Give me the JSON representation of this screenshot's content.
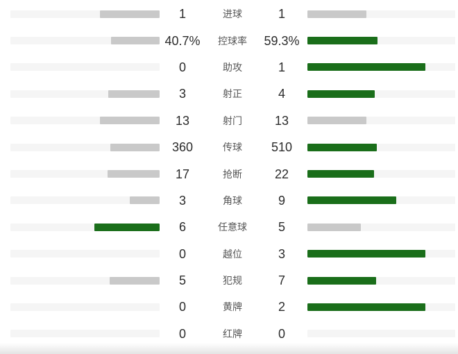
{
  "panel": {
    "kind": "football-match-stats-comparison"
  },
  "colors": {
    "leading_bar_green": "#1a6e1a",
    "trailing_bar_gray": "#c9c9c9",
    "bar_track": "#f5f5f5",
    "value_text": "#2b2b2b",
    "label_text": "#555555",
    "background": "#ffffff",
    "bottom_edge_gray": "#e4e4e4"
  },
  "bar_rule": {
    "max_share_of_track": 0.8
  },
  "rows": [
    {
      "label": "进球",
      "home": "1",
      "away": "1",
      "home_num": 1,
      "away_num": 1
    },
    {
      "label": "控球率",
      "home": "40.7%",
      "away": "59.3%",
      "home_num": 40.7,
      "away_num": 59.3
    },
    {
      "label": "助攻",
      "home": "0",
      "away": "1",
      "home_num": 0,
      "away_num": 1
    },
    {
      "label": "射正",
      "home": "3",
      "away": "4",
      "home_num": 3,
      "away_num": 4
    },
    {
      "label": "射门",
      "home": "13",
      "away": "13",
      "home_num": 13,
      "away_num": 13
    },
    {
      "label": "传球",
      "home": "360",
      "away": "510",
      "home_num": 360,
      "away_num": 510
    },
    {
      "label": "抢断",
      "home": "17",
      "away": "22",
      "home_num": 17,
      "away_num": 22
    },
    {
      "label": "角球",
      "home": "3",
      "away": "9",
      "home_num": 3,
      "away_num": 9
    },
    {
      "label": "任意球",
      "home": "6",
      "away": "5",
      "home_num": 6,
      "away_num": 5
    },
    {
      "label": "越位",
      "home": "0",
      "away": "3",
      "home_num": 0,
      "away_num": 3
    },
    {
      "label": "犯规",
      "home": "5",
      "away": "7",
      "home_num": 5,
      "away_num": 7
    },
    {
      "label": "黄牌",
      "home": "0",
      "away": "2",
      "home_num": 0,
      "away_num": 2
    },
    {
      "label": "红牌",
      "home": "0",
      "away": "0",
      "home_num": 0,
      "away_num": 0
    }
  ],
  "chart_data": {
    "type": "bar",
    "orientation": "horizontal-paired",
    "categories": [
      "进球",
      "控球率",
      "助攻",
      "射正",
      "射门",
      "传球",
      "抢断",
      "角球",
      "任意球",
      "越位",
      "犯规",
      "黄牌",
      "红牌"
    ],
    "series": [
      {
        "name": "home",
        "values": [
          1,
          40.7,
          0,
          3,
          13,
          360,
          17,
          3,
          6,
          0,
          5,
          0,
          0
        ]
      },
      {
        "name": "away",
        "values": [
          1,
          59.3,
          1,
          4,
          13,
          510,
          22,
          9,
          5,
          3,
          7,
          2,
          0
        ]
      }
    ],
    "title": "",
    "xlabel": "",
    "ylabel": "",
    "legend": "none",
    "grid": false,
    "notes": "Each row: bar length = value / (home+away) * 80% of track; leading side green, trailing/equal side gray; empty track when value is 0."
  }
}
